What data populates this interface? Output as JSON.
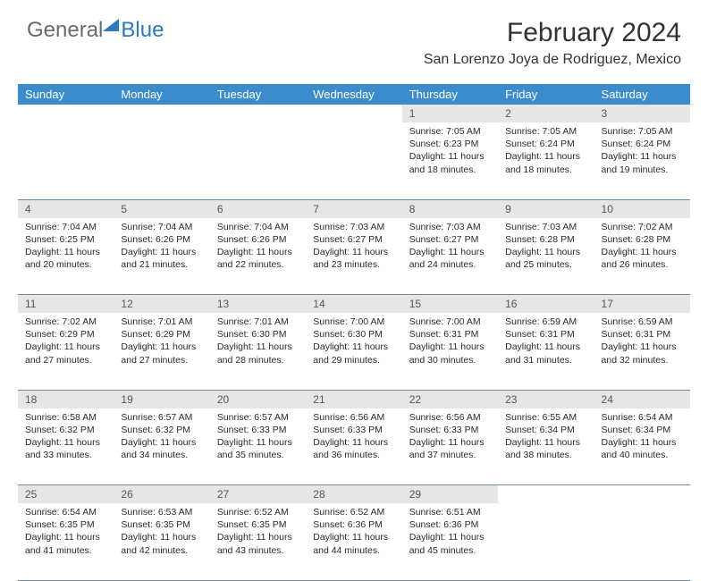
{
  "brand": {
    "part1": "General",
    "part2": "Blue"
  },
  "title": "February 2024",
  "location": "San Lorenzo Joya de Rodriguez, Mexico",
  "colors": {
    "header_bg": "#3b8ccc",
    "header_text": "#ffffff",
    "daynum_bg": "#e6e6e6",
    "daynum_text": "#555555",
    "body_text": "#2a2a2a",
    "rule": "#6a8aa8",
    "brand_gray": "#6b6b6b",
    "brand_blue": "#2a7abf"
  },
  "weekdays": [
    "Sunday",
    "Monday",
    "Tuesday",
    "Wednesday",
    "Thursday",
    "Friday",
    "Saturday"
  ],
  "weeks": [
    [
      null,
      null,
      null,
      null,
      {
        "n": "1",
        "sunrise": "7:05 AM",
        "sunset": "6:23 PM",
        "daylight": "11 hours and 18 minutes."
      },
      {
        "n": "2",
        "sunrise": "7:05 AM",
        "sunset": "6:24 PM",
        "daylight": "11 hours and 18 minutes."
      },
      {
        "n": "3",
        "sunrise": "7:05 AM",
        "sunset": "6:24 PM",
        "daylight": "11 hours and 19 minutes."
      }
    ],
    [
      {
        "n": "4",
        "sunrise": "7:04 AM",
        "sunset": "6:25 PM",
        "daylight": "11 hours and 20 minutes."
      },
      {
        "n": "5",
        "sunrise": "7:04 AM",
        "sunset": "6:26 PM",
        "daylight": "11 hours and 21 minutes."
      },
      {
        "n": "6",
        "sunrise": "7:04 AM",
        "sunset": "6:26 PM",
        "daylight": "11 hours and 22 minutes."
      },
      {
        "n": "7",
        "sunrise": "7:03 AM",
        "sunset": "6:27 PM",
        "daylight": "11 hours and 23 minutes."
      },
      {
        "n": "8",
        "sunrise": "7:03 AM",
        "sunset": "6:27 PM",
        "daylight": "11 hours and 24 minutes."
      },
      {
        "n": "9",
        "sunrise": "7:03 AM",
        "sunset": "6:28 PM",
        "daylight": "11 hours and 25 minutes."
      },
      {
        "n": "10",
        "sunrise": "7:02 AM",
        "sunset": "6:28 PM",
        "daylight": "11 hours and 26 minutes."
      }
    ],
    [
      {
        "n": "11",
        "sunrise": "7:02 AM",
        "sunset": "6:29 PM",
        "daylight": "11 hours and 27 minutes."
      },
      {
        "n": "12",
        "sunrise": "7:01 AM",
        "sunset": "6:29 PM",
        "daylight": "11 hours and 27 minutes."
      },
      {
        "n": "13",
        "sunrise": "7:01 AM",
        "sunset": "6:30 PM",
        "daylight": "11 hours and 28 minutes."
      },
      {
        "n": "14",
        "sunrise": "7:00 AM",
        "sunset": "6:30 PM",
        "daylight": "11 hours and 29 minutes."
      },
      {
        "n": "15",
        "sunrise": "7:00 AM",
        "sunset": "6:31 PM",
        "daylight": "11 hours and 30 minutes."
      },
      {
        "n": "16",
        "sunrise": "6:59 AM",
        "sunset": "6:31 PM",
        "daylight": "11 hours and 31 minutes."
      },
      {
        "n": "17",
        "sunrise": "6:59 AM",
        "sunset": "6:31 PM",
        "daylight": "11 hours and 32 minutes."
      }
    ],
    [
      {
        "n": "18",
        "sunrise": "6:58 AM",
        "sunset": "6:32 PM",
        "daylight": "11 hours and 33 minutes."
      },
      {
        "n": "19",
        "sunrise": "6:57 AM",
        "sunset": "6:32 PM",
        "daylight": "11 hours and 34 minutes."
      },
      {
        "n": "20",
        "sunrise": "6:57 AM",
        "sunset": "6:33 PM",
        "daylight": "11 hours and 35 minutes."
      },
      {
        "n": "21",
        "sunrise": "6:56 AM",
        "sunset": "6:33 PM",
        "daylight": "11 hours and 36 minutes."
      },
      {
        "n": "22",
        "sunrise": "6:56 AM",
        "sunset": "6:33 PM",
        "daylight": "11 hours and 37 minutes."
      },
      {
        "n": "23",
        "sunrise": "6:55 AM",
        "sunset": "6:34 PM",
        "daylight": "11 hours and 38 minutes."
      },
      {
        "n": "24",
        "sunrise": "6:54 AM",
        "sunset": "6:34 PM",
        "daylight": "11 hours and 40 minutes."
      }
    ],
    [
      {
        "n": "25",
        "sunrise": "6:54 AM",
        "sunset": "6:35 PM",
        "daylight": "11 hours and 41 minutes."
      },
      {
        "n": "26",
        "sunrise": "6:53 AM",
        "sunset": "6:35 PM",
        "daylight": "11 hours and 42 minutes."
      },
      {
        "n": "27",
        "sunrise": "6:52 AM",
        "sunset": "6:35 PM",
        "daylight": "11 hours and 43 minutes."
      },
      {
        "n": "28",
        "sunrise": "6:52 AM",
        "sunset": "6:36 PM",
        "daylight": "11 hours and 44 minutes."
      },
      {
        "n": "29",
        "sunrise": "6:51 AM",
        "sunset": "6:36 PM",
        "daylight": "11 hours and 45 minutes."
      },
      null,
      null
    ]
  ],
  "labels": {
    "sunrise": "Sunrise:",
    "sunset": "Sunset:",
    "daylight": "Daylight:"
  }
}
